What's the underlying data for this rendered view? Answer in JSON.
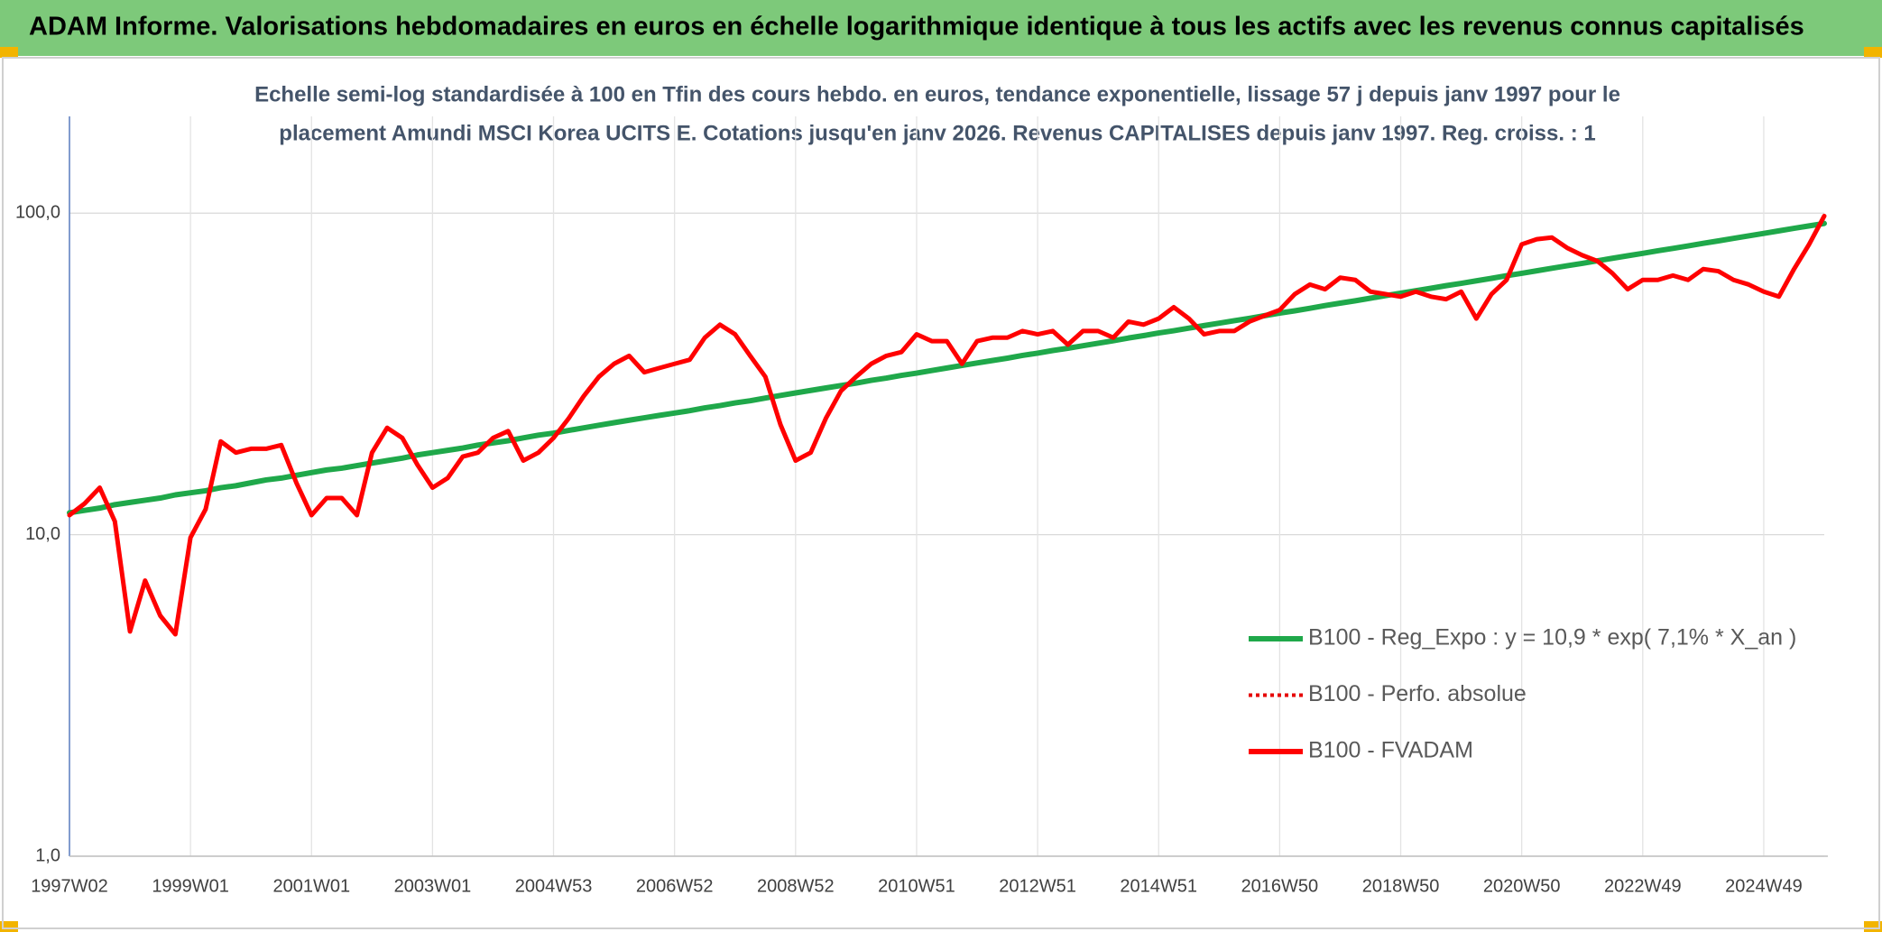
{
  "header": {
    "title": "ADAM Informe. Valorisations hebdomadaires en euros en échelle logarithmique identique à tous les actifs avec les revenus connus capitalisés"
  },
  "chart_data": {
    "type": "line",
    "subtitle": [
      "Echelle semi-log standardisée à 100 en Tfin des cours hebdo. en euros, tendance exponentielle, lissage 57 j depuis janv 1997 pour le",
      "placement Amundi MSCI Korea UCITS E. Cotations jusqu'en janv 2026. Revenus CAPITALISES depuis janv 1997. Reg. croiss. : 1"
    ],
    "log_scale": true,
    "grid": true,
    "legend": "right",
    "ylim": [
      1,
      200
    ],
    "yticks": [
      {
        "value": 1,
        "label": "1,0"
      },
      {
        "value": 10,
        "label": "10,0"
      },
      {
        "value": 100,
        "label": "100,0"
      }
    ],
    "categories": [
      "1997W02",
      null,
      null,
      null,
      null,
      null,
      null,
      null,
      "1999W01",
      null,
      null,
      null,
      null,
      null,
      null,
      null,
      "2001W01",
      null,
      null,
      null,
      null,
      null,
      null,
      null,
      "2003W01",
      null,
      null,
      null,
      null,
      null,
      null,
      null,
      "2004W53",
      null,
      null,
      null,
      null,
      null,
      null,
      null,
      "2006W52",
      null,
      null,
      null,
      null,
      null,
      null,
      null,
      "2008W52",
      null,
      null,
      null,
      null,
      null,
      null,
      null,
      "2010W51",
      null,
      null,
      null,
      null,
      null,
      null,
      null,
      "2012W51",
      null,
      null,
      null,
      null,
      null,
      null,
      null,
      "2014W51",
      null,
      null,
      null,
      null,
      null,
      null,
      null,
      "2016W50",
      null,
      null,
      null,
      null,
      null,
      null,
      null,
      "2018W50",
      null,
      null,
      null,
      null,
      null,
      null,
      null,
      "2020W50",
      null,
      null,
      null,
      null,
      null,
      null,
      null,
      "2022W49",
      null,
      null,
      null,
      null,
      null,
      null,
      null,
      "2024W49",
      null,
      null,
      null,
      null
    ],
    "series": [
      {
        "name": "B100 - Reg_Expo : y = 10,9 * exp( 7,1% *  X_an )",
        "color": "#1fa84a",
        "width": 6,
        "values": [
          11.7,
          11.9,
          12.1,
          12.4,
          12.6,
          12.8,
          13.0,
          13.3,
          13.5,
          13.7,
          14.0,
          14.2,
          14.5,
          14.8,
          15.0,
          15.3,
          15.6,
          15.9,
          16.1,
          16.4,
          16.7,
          17.0,
          17.3,
          17.7,
          18.0,
          18.3,
          18.6,
          19.0,
          19.3,
          19.6,
          20.0,
          20.4,
          20.7,
          21.1,
          21.5,
          21.9,
          22.3,
          22.7,
          23.1,
          23.5,
          23.9,
          24.3,
          24.8,
          25.2,
          25.7,
          26.1,
          26.6,
          27.1,
          27.6,
          28.1,
          28.6,
          29.1,
          29.6,
          30.2,
          30.7,
          31.3,
          31.8,
          32.4,
          33.0,
          33.6,
          34.2,
          34.8,
          35.4,
          36.1,
          36.7,
          37.4,
          38.0,
          38.7,
          39.4,
          40.1,
          40.9,
          41.6,
          42.4,
          43.1,
          43.9,
          44.7,
          45.5,
          46.3,
          47.1,
          48.0,
          48.9,
          49.7,
          50.6,
          51.6,
          52.5,
          53.4,
          54.4,
          55.4,
          56.4,
          57.4,
          58.4,
          59.5,
          60.5,
          61.6,
          62.7,
          63.9,
          65.0,
          66.2,
          67.4,
          68.6,
          69.8,
          71.1,
          72.4,
          73.7,
          75.0,
          76.4,
          77.7,
          79.1,
          80.6,
          82.0,
          83.5,
          85.0,
          86.5,
          88.1,
          89.7,
          91.3,
          92.9
        ]
      },
      {
        "name": "B100 - Perfo. absolue",
        "color": "#e60000",
        "dash": true
      },
      {
        "name": "B100 - FVADAM",
        "color": "#ff0000",
        "width": 5,
        "values": [
          11.5,
          12.5,
          14,
          11,
          5,
          7.2,
          5.6,
          4.9,
          9.8,
          12,
          19.5,
          18,
          18.5,
          18.5,
          19,
          14.5,
          11.5,
          13,
          13,
          11.5,
          18,
          21.5,
          20,
          16.5,
          14,
          15,
          17.5,
          18,
          20,
          21,
          17,
          18,
          20,
          23,
          27,
          31,
          34,
          36,
          32,
          33,
          34,
          35,
          41,
          45,
          42,
          36,
          31,
          22,
          17,
          18,
          23,
          28,
          31,
          34,
          36,
          37,
          42,
          40,
          40,
          34,
          40,
          41,
          41,
          43,
          42,
          43,
          39,
          43,
          43,
          41,
          46,
          45,
          47,
          51,
          47,
          42,
          43,
          43,
          46,
          48,
          50,
          56,
          60,
          58,
          63,
          62,
          57,
          56,
          55,
          57,
          55,
          54,
          57,
          47,
          56,
          62,
          80,
          83,
          84,
          78,
          74,
          71,
          65,
          58,
          62,
          62,
          64,
          62,
          67,
          66,
          62,
          60,
          57,
          55,
          67,
          80,
          98
        ]
      }
    ]
  }
}
